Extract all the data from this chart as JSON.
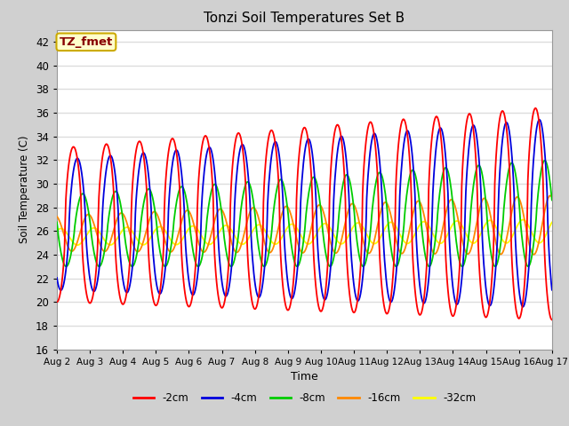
{
  "title": "Tonzi Soil Temperatures Set B",
  "xlabel": "Time",
  "ylabel": "Soil Temperature (C)",
  "ylim": [
    16,
    43
  ],
  "yticks": [
    16,
    18,
    20,
    22,
    24,
    26,
    28,
    30,
    32,
    34,
    36,
    38,
    40,
    42
  ],
  "annotation": "TZ_fmet",
  "annotation_color": "#880000",
  "annotation_bg": "#ffffcc",
  "annotation_border": "#ccaa00",
  "fig_bg": "#d0d0d0",
  "plot_bg": "#ffffff",
  "grid_color": "#dddddd",
  "line_colors": {
    "-2cm": "#ff0000",
    "-4cm": "#0000dd",
    "-8cm": "#00cc00",
    "-16cm": "#ff8800",
    "-32cm": "#ffff00"
  },
  "legend_labels": [
    "-2cm",
    "-4cm",
    "-8cm",
    "-16cm",
    "-32cm"
  ],
  "n_days": 15,
  "x_tick_labels": [
    "Aug 2",
    "Aug 3",
    "Aug 4",
    "Aug 5",
    "Aug 6",
    "Aug 7",
    "Aug 8",
    "Aug 9",
    "Aug 10",
    "Aug 11",
    "Aug 12",
    "Aug 13",
    "Aug 14",
    "Aug 15",
    "Aug 16",
    "Aug 17"
  ],
  "points_per_day": 48
}
